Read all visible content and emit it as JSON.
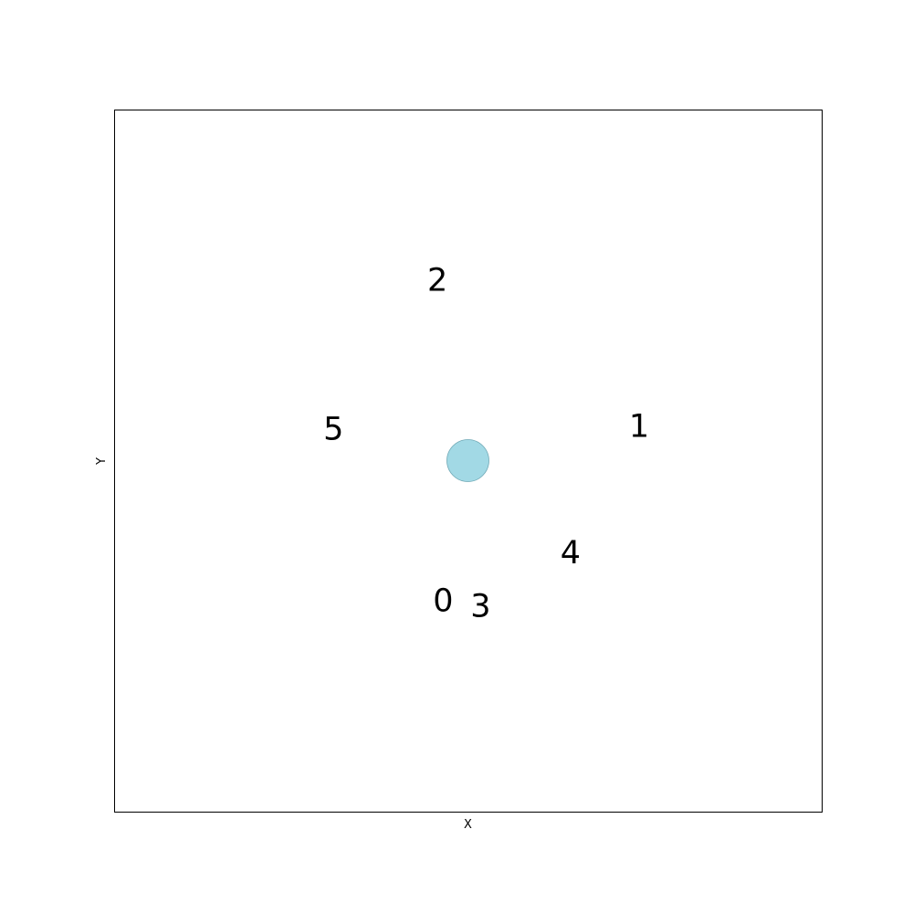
{
  "chart_data": {
    "type": "scatter",
    "title": "",
    "xlabel": "X",
    "ylabel": "Y",
    "xlim": [
      -5,
      5
    ],
    "ylim": [
      -5,
      5
    ],
    "grid": false,
    "ticks": false,
    "marker": {
      "x": 0,
      "y": 0,
      "color": "#a2d9e5",
      "edge_color": "#6fa8b5"
    },
    "labels": [
      {
        "text": "0",
        "x": -0.35,
        "y": -2.0
      },
      {
        "text": "1",
        "x": 2.42,
        "y": 0.48
      },
      {
        "text": "2",
        "x": -0.43,
        "y": 2.56
      },
      {
        "text": "3",
        "x": 0.18,
        "y": -2.08
      },
      {
        "text": "4",
        "x": 1.45,
        "y": -1.32
      },
      {
        "text": "5",
        "x": -1.9,
        "y": 0.44
      }
    ]
  }
}
